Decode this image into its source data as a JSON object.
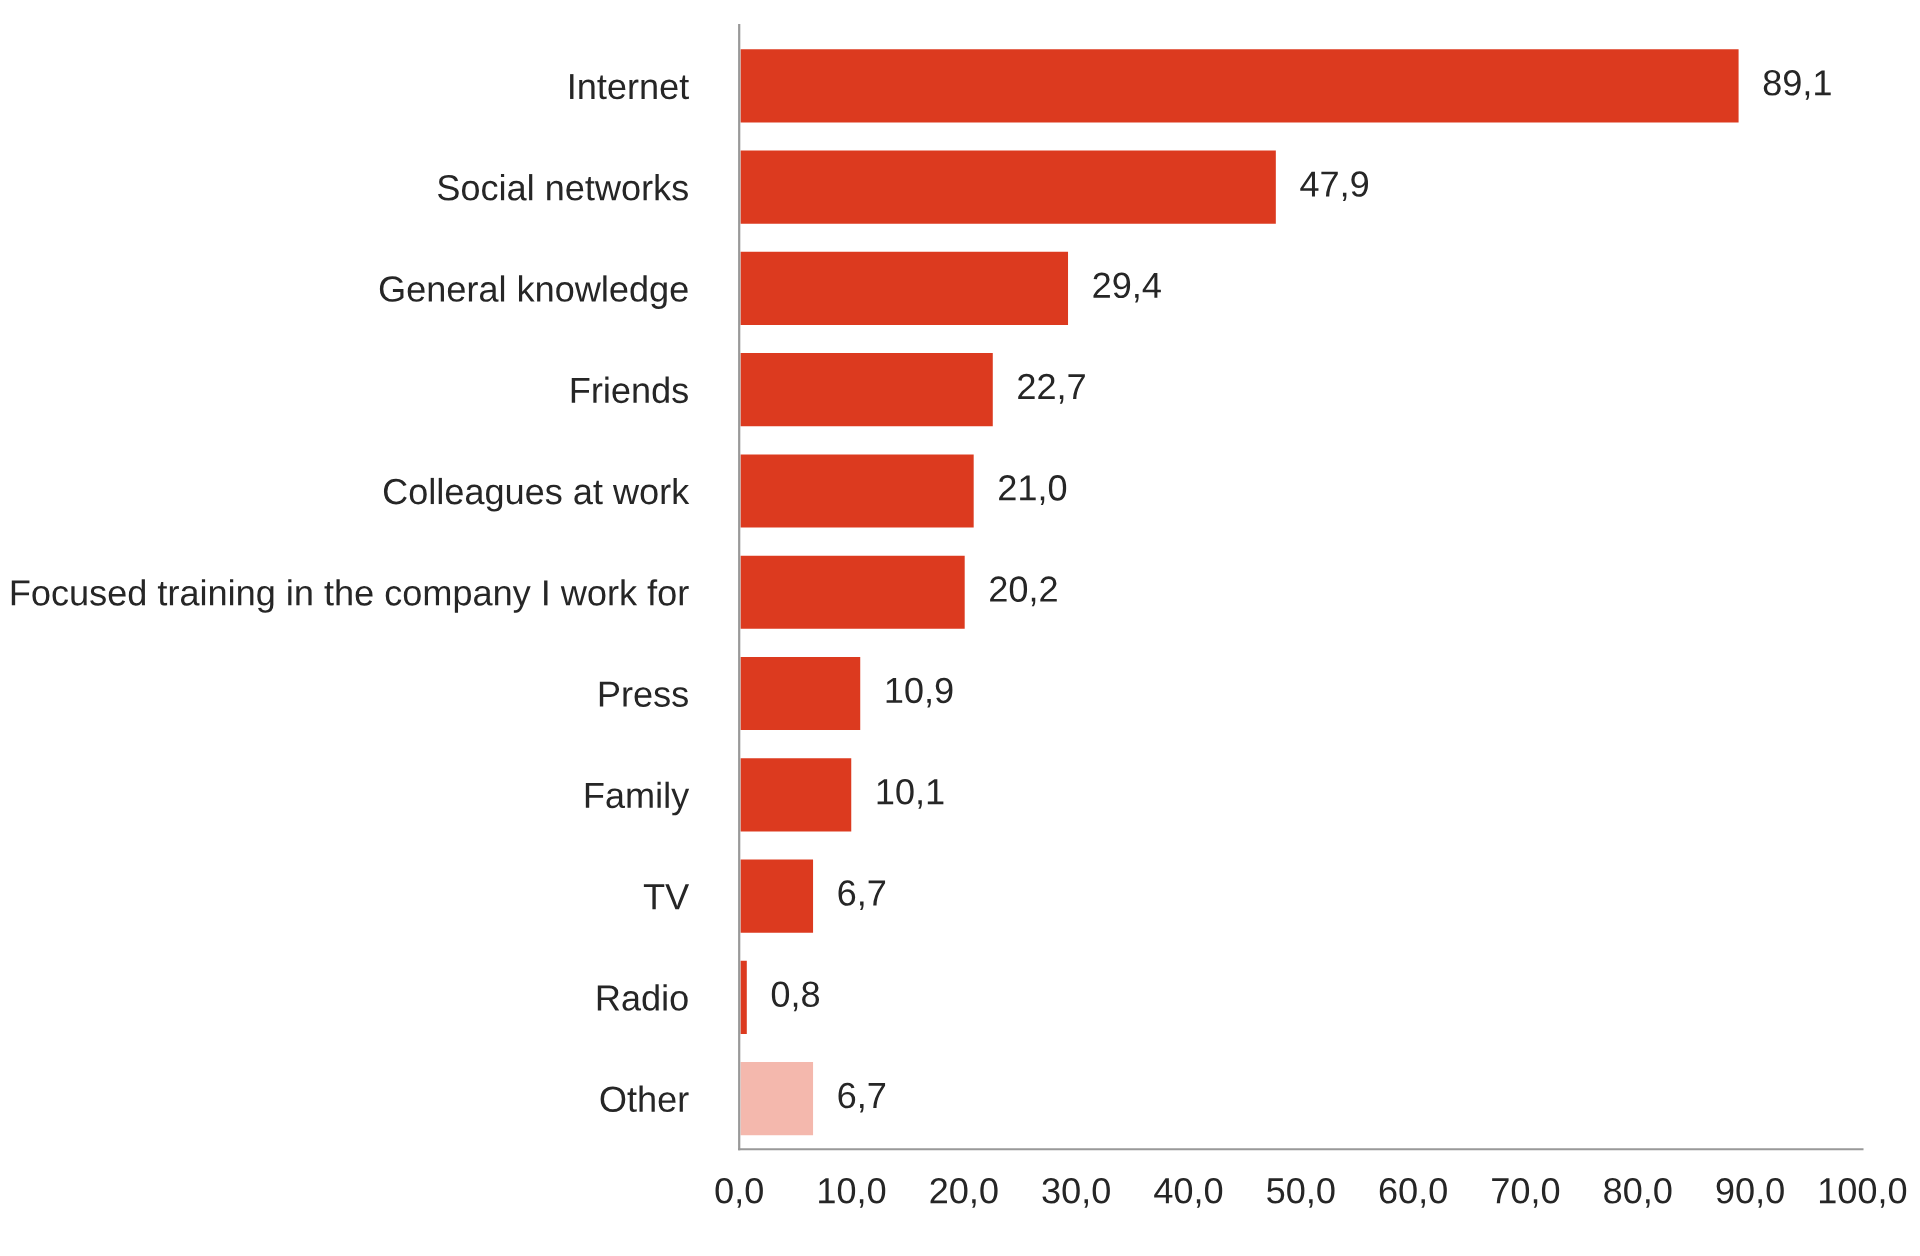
{
  "chart_data": {
    "type": "bar",
    "orientation": "horizontal",
    "categories": [
      "Internet",
      "Social networks",
      "General knowledge",
      "Friends",
      "Colleagues at work",
      "Focused training in the company I work for",
      "Press",
      "Family",
      "TV",
      "Radio",
      "Other"
    ],
    "values": [
      89.1,
      47.9,
      29.4,
      22.7,
      21.0,
      20.2,
      10.9,
      10.1,
      6.7,
      0.8,
      6.7
    ],
    "colors": [
      "#dc3a1f",
      "#dc3a1f",
      "#dc3a1f",
      "#dc3a1f",
      "#dc3a1f",
      "#dc3a1f",
      "#dc3a1f",
      "#dc3a1f",
      "#dc3a1f",
      "#dc3a1f",
      "#f4b8ad"
    ],
    "value_labels": [
      "89,1",
      "47,9",
      "29,4",
      "22,7",
      "21,0",
      "20,2",
      "10,9",
      "10,1",
      "6,7",
      "0,8",
      "6,7"
    ],
    "xlim": [
      0,
      100
    ],
    "xticks": [
      {
        "value": 0,
        "label": "0,0"
      },
      {
        "value": 10,
        "label": "10,0"
      },
      {
        "value": 20,
        "label": "20,0"
      },
      {
        "value": 30,
        "label": "30,0"
      },
      {
        "value": 40,
        "label": "40,0"
      },
      {
        "value": 50,
        "label": "50,0"
      },
      {
        "value": 60,
        "label": "60,0"
      },
      {
        "value": 70,
        "label": "70,0"
      },
      {
        "value": 80,
        "label": "80,0"
      },
      {
        "value": 90,
        "label": "90,0"
      },
      {
        "value": 100,
        "label": "100,0"
      }
    ],
    "grid": false,
    "legend": false
  }
}
